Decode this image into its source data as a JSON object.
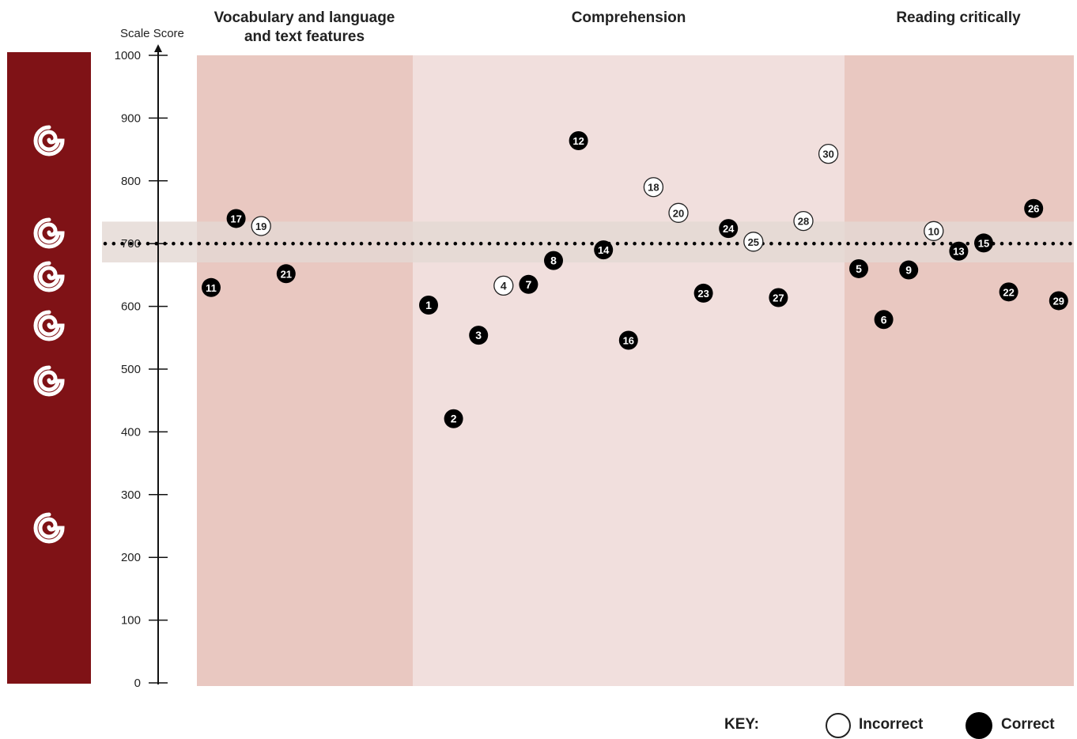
{
  "chart_data": {
    "type": "scatter",
    "ylabel": "Scale Score",
    "ylim": [
      0,
      1000
    ],
    "yticks": [
      0,
      100,
      200,
      300,
      400,
      500,
      600,
      700,
      800,
      900,
      1000
    ],
    "reference_line": 700,
    "reference_band": [
      670,
      735
    ],
    "sections": [
      {
        "title": "Vocabulary and language\nand text features",
        "color": "#e9c8c1"
      },
      {
        "title": "Comprehension",
        "color": "#f1dfdd"
      },
      {
        "title": "Reading critically",
        "color": "#e9c8c1"
      }
    ],
    "points": [
      {
        "label": "11",
        "y": 630,
        "correct": true
      },
      {
        "label": "17",
        "y": 740,
        "correct": true
      },
      {
        "label": "19",
        "y": 728,
        "correct": false
      },
      {
        "label": "21",
        "y": 652,
        "correct": true
      },
      {
        "label": "1",
        "y": 602,
        "correct": true
      },
      {
        "label": "2",
        "y": 421,
        "correct": true
      },
      {
        "label": "3",
        "y": 554,
        "correct": true
      },
      {
        "label": "4",
        "y": 633,
        "correct": false
      },
      {
        "label": "7",
        "y": 635,
        "correct": true
      },
      {
        "label": "8",
        "y": 673,
        "correct": true
      },
      {
        "label": "12",
        "y": 864,
        "correct": true
      },
      {
        "label": "14",
        "y": 690,
        "correct": true
      },
      {
        "label": "16",
        "y": 546,
        "correct": true
      },
      {
        "label": "18",
        "y": 790,
        "correct": false
      },
      {
        "label": "20",
        "y": 749,
        "correct": false
      },
      {
        "label": "23",
        "y": 621,
        "correct": true
      },
      {
        "label": "24",
        "y": 724,
        "correct": true
      },
      {
        "label": "25",
        "y": 703,
        "correct": false
      },
      {
        "label": "27",
        "y": 614,
        "correct": true
      },
      {
        "label": "28",
        "y": 736,
        "correct": false
      },
      {
        "label": "30",
        "y": 843,
        "correct": false
      },
      {
        "label": "5",
        "y": 660,
        "correct": true
      },
      {
        "label": "6",
        "y": 579,
        "correct": true
      },
      {
        "label": "9",
        "y": 658,
        "correct": true
      },
      {
        "label": "10",
        "y": 720,
        "correct": false
      },
      {
        "label": "13",
        "y": 688,
        "correct": true
      },
      {
        "label": "15",
        "y": 701,
        "correct": true
      },
      {
        "label": "22",
        "y": 623,
        "correct": true
      },
      {
        "label": "26",
        "y": 756,
        "correct": true
      },
      {
        "label": "29",
        "y": 609,
        "correct": true
      }
    ],
    "key": {
      "title": "KEY:",
      "incorrect": "Incorrect",
      "correct": "Correct"
    }
  },
  "koru_icons": [
    "koru-icon",
    "koru-icon",
    "koru-icon",
    "koru-icon",
    "koru-icon",
    "koru-icon"
  ],
  "colors": {
    "bar": "#7f1216",
    "dark_band": "#e9c8c1",
    "light_band": "#f1dfdd",
    "reference_band": "#e3d8d3"
  }
}
